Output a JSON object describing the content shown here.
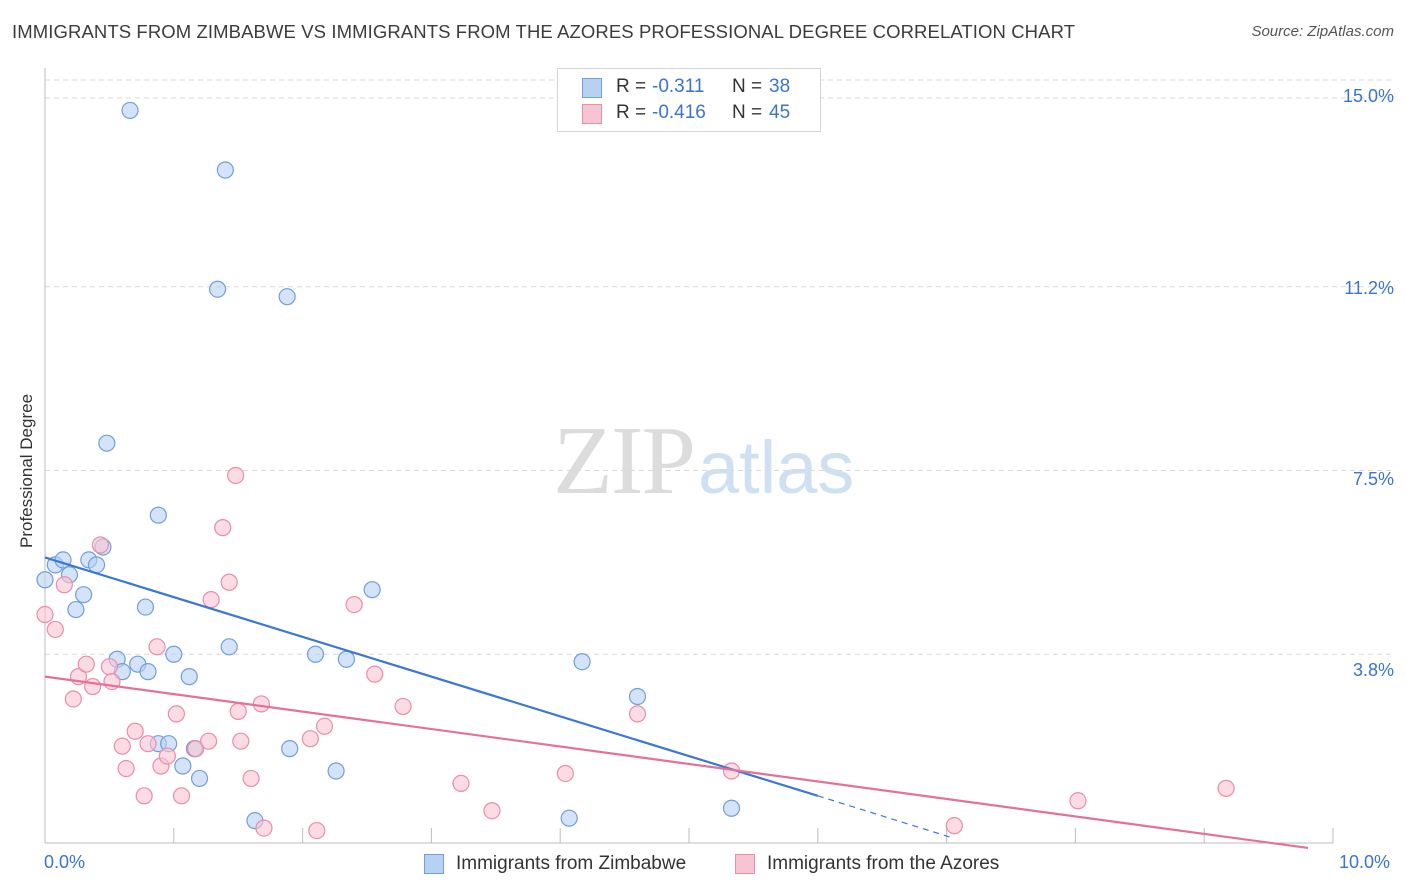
{
  "title": "IMMIGRANTS FROM ZIMBABWE VS IMMIGRANTS FROM THE AZORES PROFESSIONAL DEGREE CORRELATION CHART",
  "source": "Source: ZipAtlas.com",
  "watermark": {
    "zip": "ZIP",
    "atlas": "atlas"
  },
  "legend": {
    "rows": [
      {
        "r_label": "R =",
        "r_value": "-0.311",
        "n_label": "N =",
        "n_value": "38",
        "color": "#a9c8f0"
      },
      {
        "r_label": "R =",
        "r_value": "-0.416",
        "n_label": "N =",
        "n_value": "45",
        "color": "#f6b8ca"
      }
    ]
  },
  "colors": {
    "blue_fill": "#b7d1f2",
    "blue_stroke": "#6f9fdc",
    "blue_line": "#3b78d4",
    "pink_fill": "#f8c4d3",
    "pink_stroke": "#eb8ca9",
    "pink_line": "#e5709a",
    "grid": "#d9d9d9",
    "tick_text": "#3a74d0"
  },
  "chart_data": {
    "type": "scatter",
    "title": "IMMIGRANTS FROM ZIMBABWE VS IMMIGRANTS FROM THE AZORES PROFESSIONAL DEGREE CORRELATION CHART",
    "xlabel": "",
    "ylabel": "Professional Degree",
    "xlim": [
      0,
      10
    ],
    "ylim": [
      0,
      15
    ],
    "x_tick_labels": [
      "0.0%",
      "10.0%"
    ],
    "y_ticks": [
      3.8,
      7.5,
      11.2,
      15.0
    ],
    "y_tick_labels": [
      "3.8%",
      "7.5%",
      "11.2%",
      "15.0%"
    ],
    "grid": true,
    "legend_position": "top-center",
    "series": [
      {
        "name": "Immigrants from Zimbabwe",
        "color": "#a9c8f0",
        "points": [
          [
            0.0,
            5.3
          ],
          [
            0.08,
            5.6
          ],
          [
            0.14,
            5.7
          ],
          [
            0.19,
            5.4
          ],
          [
            0.24,
            4.7
          ],
          [
            0.3,
            5.0
          ],
          [
            0.34,
            5.7
          ],
          [
            0.4,
            5.6
          ],
          [
            0.45,
            5.96
          ],
          [
            0.48,
            8.05
          ],
          [
            0.56,
            3.7
          ],
          [
            0.6,
            3.45
          ],
          [
            0.66,
            14.75
          ],
          [
            0.72,
            3.6
          ],
          [
            0.78,
            4.75
          ],
          [
            0.8,
            3.45
          ],
          [
            0.88,
            6.6
          ],
          [
            0.88,
            2.0
          ],
          [
            0.96,
            2.0
          ],
          [
            1.0,
            3.8
          ],
          [
            1.07,
            1.55
          ],
          [
            1.12,
            3.35
          ],
          [
            1.16,
            1.9
          ],
          [
            1.2,
            1.3
          ],
          [
            1.34,
            11.15
          ],
          [
            1.4,
            13.55
          ],
          [
            1.43,
            3.95
          ],
          [
            1.63,
            0.45
          ],
          [
            1.88,
            11.0
          ],
          [
            1.9,
            1.9
          ],
          [
            2.1,
            3.8
          ],
          [
            2.26,
            1.45
          ],
          [
            2.34,
            3.7
          ],
          [
            2.54,
            5.1
          ],
          [
            4.07,
            0.5
          ],
          [
            4.17,
            3.65
          ],
          [
            4.6,
            2.95
          ],
          [
            5.33,
            0.7
          ]
        ]
      },
      {
        "name": "Immigrants from the Azores",
        "color": "#f6b8ca",
        "points": [
          [
            0.0,
            4.6
          ],
          [
            0.08,
            4.3
          ],
          [
            0.15,
            5.2
          ],
          [
            0.22,
            2.9
          ],
          [
            0.26,
            3.35
          ],
          [
            0.32,
            3.6
          ],
          [
            0.37,
            3.15
          ],
          [
            0.43,
            6.0
          ],
          [
            0.5,
            3.55
          ],
          [
            0.52,
            3.25
          ],
          [
            0.6,
            1.95
          ],
          [
            0.63,
            1.5
          ],
          [
            0.7,
            2.25
          ],
          [
            0.77,
            0.95
          ],
          [
            0.8,
            2.0
          ],
          [
            0.87,
            3.95
          ],
          [
            0.9,
            1.55
          ],
          [
            0.95,
            1.75
          ],
          [
            1.02,
            2.6
          ],
          [
            1.06,
            0.95
          ],
          [
            1.17,
            1.9
          ],
          [
            1.27,
            2.05
          ],
          [
            1.29,
            4.9
          ],
          [
            1.38,
            6.35
          ],
          [
            1.43,
            5.25
          ],
          [
            1.48,
            7.4
          ],
          [
            1.5,
            2.65
          ],
          [
            1.52,
            2.05
          ],
          [
            1.6,
            1.3
          ],
          [
            1.68,
            2.8
          ],
          [
            1.7,
            0.3
          ],
          [
            2.06,
            2.1
          ],
          [
            2.11,
            0.25
          ],
          [
            2.17,
            2.35
          ],
          [
            2.4,
            4.8
          ],
          [
            2.56,
            3.4
          ],
          [
            2.78,
            2.75
          ],
          [
            3.23,
            1.2
          ],
          [
            3.47,
            0.65
          ],
          [
            4.04,
            1.4
          ],
          [
            4.6,
            2.6
          ],
          [
            5.33,
            1.45
          ],
          [
            7.06,
            0.35
          ],
          [
            8.02,
            0.85
          ],
          [
            9.17,
            1.1
          ]
        ]
      }
    ],
    "trend_lines": [
      {
        "series": "Immigrants from Zimbabwe",
        "from": [
          0.0,
          5.75
        ],
        "to": [
          6.0,
          0.95
        ],
        "dashed_to": [
          7.05,
          0.1
        ]
      },
      {
        "series": "Immigrants from the Azores",
        "from": [
          0.0,
          3.35
        ],
        "to": [
          10.0,
          -0.1
        ]
      }
    ]
  },
  "bottom_legend": [
    {
      "label": "Immigrants from Zimbabwe",
      "color": "#a9c8f0"
    },
    {
      "label": "Immigrants from the Azores",
      "color": "#f6b8ca"
    }
  ]
}
